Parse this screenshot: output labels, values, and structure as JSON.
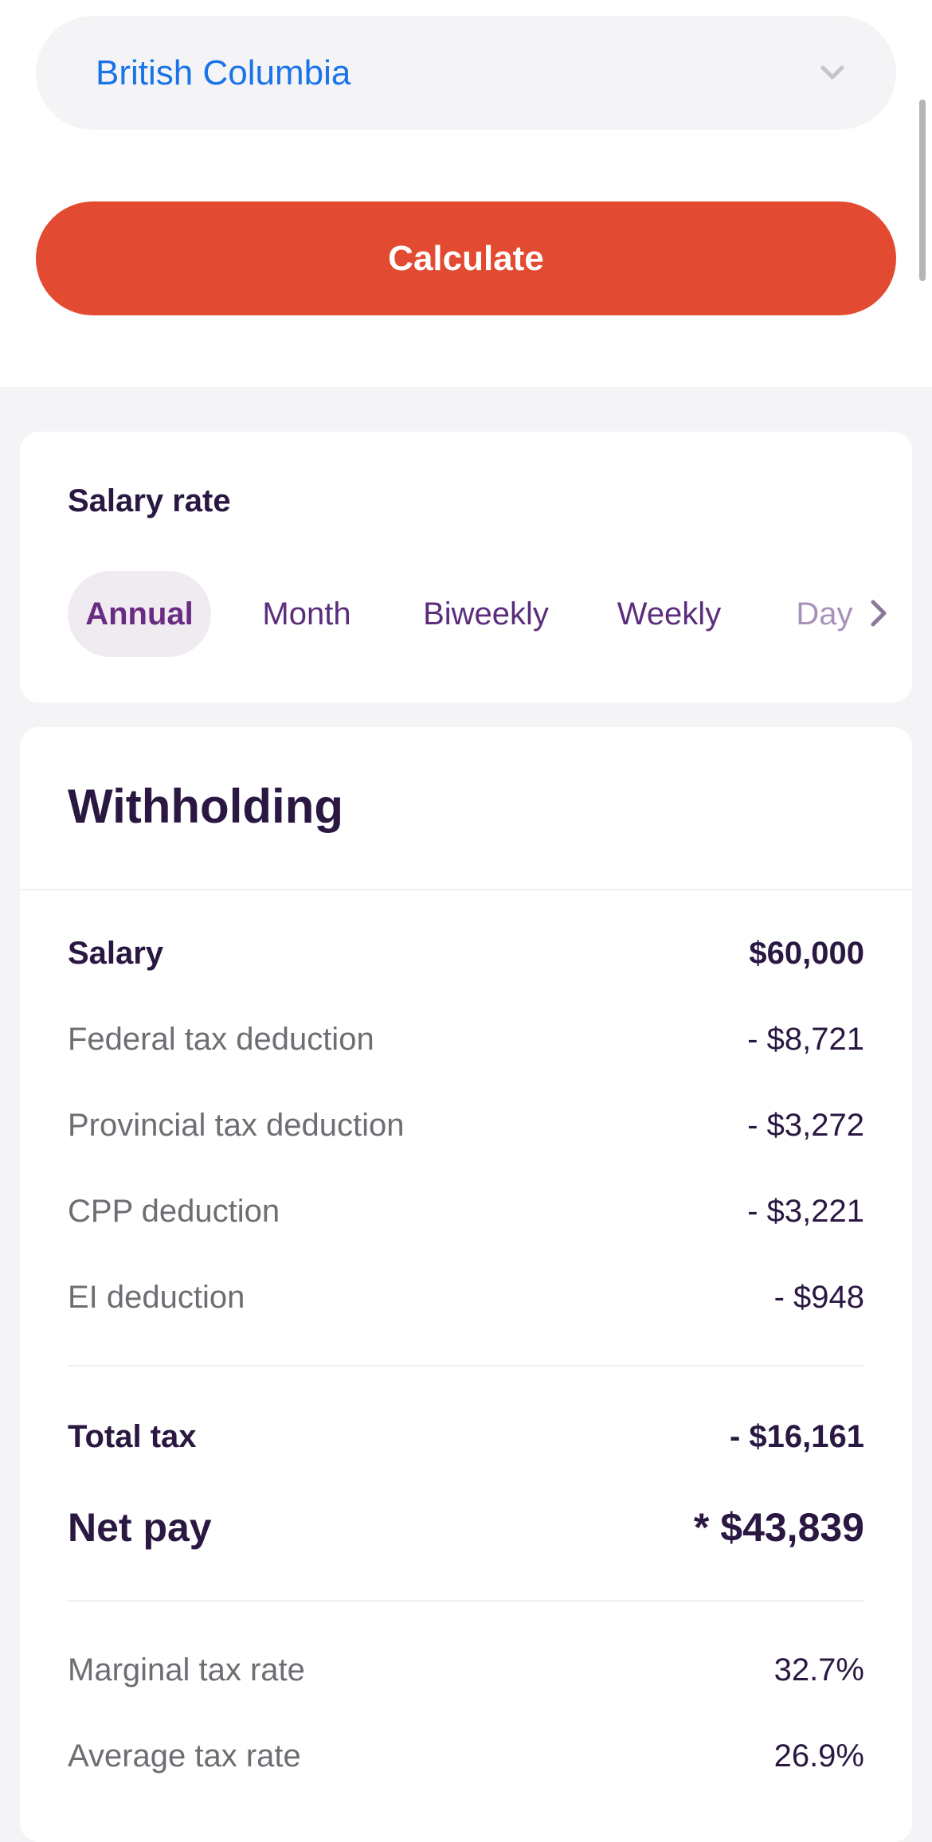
{
  "province_select": {
    "value": "British Columbia"
  },
  "calculate_label": "Calculate",
  "salary_rate": {
    "title": "Salary rate",
    "tabs": [
      "Annual",
      "Month",
      "Biweekly",
      "Weekly",
      "Day"
    ],
    "selected": "Annual"
  },
  "withholding": {
    "title": "Withholding",
    "salary": {
      "label": "Salary",
      "value": "$60,000"
    },
    "deductions": [
      {
        "label": "Federal tax deduction",
        "value": "- $8,721"
      },
      {
        "label": "Provincial tax deduction",
        "value": "- $3,272"
      },
      {
        "label": "CPP deduction",
        "value": "- $3,221"
      },
      {
        "label": "EI deduction",
        "value": "- $948"
      }
    ],
    "total_tax": {
      "label": "Total tax",
      "value": "- $16,161"
    },
    "net_pay": {
      "label": "Net pay",
      "value": "* $43,839"
    },
    "rates": [
      {
        "label": "Marginal tax rate",
        "value": "32.7%"
      },
      {
        "label": "Average tax rate",
        "value": "26.9%"
      }
    ]
  },
  "colors": {
    "accent": "#e24b31",
    "link": "#1a73e8",
    "text": "#2a1842",
    "tab_active_bg": "#f0eaf1"
  }
}
